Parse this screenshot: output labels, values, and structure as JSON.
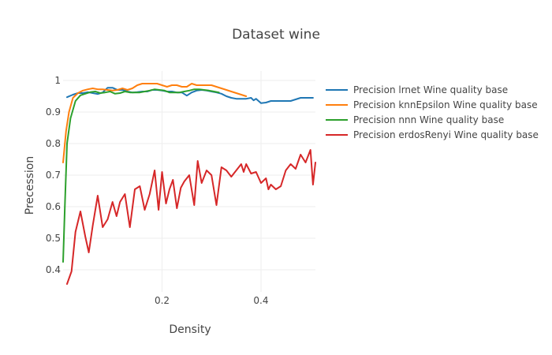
{
  "chart_data": {
    "type": "line",
    "title": "Dataset wine",
    "xlabel": "Density",
    "ylabel": "Precession",
    "xlim": [
      0.0,
      0.51
    ],
    "ylim": [
      0.33,
      1.03
    ],
    "x_ticks": [
      {
        "value": 0.2,
        "label": "0.2"
      },
      {
        "value": 0.4,
        "label": "0.4"
      }
    ],
    "y_ticks": [
      {
        "value": 0.4,
        "label": "0.4"
      },
      {
        "value": 0.5,
        "label": "0.5"
      },
      {
        "value": 0.6,
        "label": "0.6"
      },
      {
        "value": 0.7,
        "label": "0.7"
      },
      {
        "value": 0.8,
        "label": "0.8"
      },
      {
        "value": 0.9,
        "label": "0.9"
      },
      {
        "value": 1.0,
        "label": "1"
      }
    ],
    "grid": true,
    "legend_position": "right",
    "series": [
      {
        "name": "Precision lrnet Wine quality base",
        "color": "#1f77b4",
        "x": [
          0.008,
          0.02,
          0.03,
          0.04,
          0.05,
          0.06,
          0.07,
          0.08,
          0.09,
          0.1,
          0.11,
          0.12,
          0.13,
          0.14,
          0.15,
          0.16,
          0.17,
          0.18,
          0.19,
          0.2,
          0.21,
          0.22,
          0.23,
          0.24,
          0.25,
          0.26,
          0.27,
          0.28,
          0.29,
          0.3,
          0.31,
          0.32,
          0.33,
          0.34,
          0.35,
          0.36,
          0.37,
          0.38,
          0.385,
          0.39,
          0.4,
          0.41,
          0.42,
          0.43,
          0.44,
          0.45,
          0.46,
          0.47,
          0.48,
          0.49,
          0.505
        ],
        "y": [
          0.947,
          0.955,
          0.96,
          0.96,
          0.963,
          0.96,
          0.957,
          0.962,
          0.977,
          0.977,
          0.97,
          0.97,
          0.965,
          0.962,
          0.963,
          0.965,
          0.965,
          0.97,
          0.97,
          0.968,
          0.965,
          0.965,
          0.962,
          0.962,
          0.952,
          0.962,
          0.968,
          0.97,
          0.968,
          0.965,
          0.962,
          0.958,
          0.95,
          0.945,
          0.942,
          0.942,
          0.942,
          0.945,
          0.937,
          0.942,
          0.928,
          0.93,
          0.935,
          0.935,
          0.935,
          0.935,
          0.935,
          0.94,
          0.945,
          0.945,
          0.945
        ]
      },
      {
        "name": "Precision knnEpsilon Wine quality base",
        "color": "#ff7f0e",
        "x": [
          0.0,
          0.006,
          0.012,
          0.02,
          0.03,
          0.04,
          0.05,
          0.06,
          0.07,
          0.08,
          0.09,
          0.1,
          0.11,
          0.12,
          0.13,
          0.14,
          0.15,
          0.16,
          0.17,
          0.18,
          0.19,
          0.2,
          0.21,
          0.22,
          0.23,
          0.24,
          0.25,
          0.26,
          0.27,
          0.28,
          0.29,
          0.3,
          0.31,
          0.32,
          0.33,
          0.34,
          0.35,
          0.36,
          0.37
        ],
        "y": [
          0.74,
          0.84,
          0.9,
          0.945,
          0.96,
          0.968,
          0.972,
          0.975,
          0.972,
          0.972,
          0.97,
          0.968,
          0.97,
          0.975,
          0.97,
          0.975,
          0.985,
          0.99,
          0.99,
          0.99,
          0.99,
          0.985,
          0.98,
          0.985,
          0.985,
          0.98,
          0.98,
          0.99,
          0.985,
          0.985,
          0.985,
          0.985,
          0.98,
          0.975,
          0.97,
          0.965,
          0.96,
          0.955,
          0.95
        ]
      },
      {
        "name": "Precision nnn Wine quality base",
        "color": "#2ca02c",
        "x": [
          0.0,
          0.004,
          0.008,
          0.015,
          0.025,
          0.035,
          0.045,
          0.055,
          0.065,
          0.075,
          0.085,
          0.095,
          0.105,
          0.115,
          0.125,
          0.135,
          0.145,
          0.155,
          0.165,
          0.175,
          0.185,
          0.195,
          0.205,
          0.215,
          0.225,
          0.235,
          0.245,
          0.255,
          0.265,
          0.275,
          0.285,
          0.295,
          0.305,
          0.315
        ],
        "y": [
          0.425,
          0.62,
          0.8,
          0.88,
          0.935,
          0.953,
          0.958,
          0.963,
          0.965,
          0.96,
          0.962,
          0.965,
          0.958,
          0.96,
          0.965,
          0.962,
          0.962,
          0.962,
          0.965,
          0.968,
          0.972,
          0.97,
          0.968,
          0.962,
          0.962,
          0.962,
          0.965,
          0.968,
          0.972,
          0.972,
          0.97,
          0.968,
          0.965,
          0.962
        ]
      },
      {
        "name": "Precision erdosRenyi Wine quality base",
        "color": "#d62728",
        "x": [
          0.008,
          0.017,
          0.025,
          0.035,
          0.045,
          0.052,
          0.06,
          0.07,
          0.08,
          0.09,
          0.1,
          0.108,
          0.115,
          0.125,
          0.135,
          0.145,
          0.155,
          0.165,
          0.175,
          0.185,
          0.193,
          0.2,
          0.208,
          0.215,
          0.222,
          0.23,
          0.238,
          0.245,
          0.255,
          0.265,
          0.272,
          0.28,
          0.29,
          0.3,
          0.31,
          0.32,
          0.33,
          0.34,
          0.35,
          0.36,
          0.365,
          0.37,
          0.38,
          0.39,
          0.4,
          0.41,
          0.415,
          0.42,
          0.43,
          0.44,
          0.45,
          0.46,
          0.47,
          0.48,
          0.49,
          0.5,
          0.505,
          0.51
        ],
        "y": [
          0.355,
          0.395,
          0.52,
          0.585,
          0.505,
          0.455,
          0.54,
          0.635,
          0.535,
          0.56,
          0.615,
          0.57,
          0.615,
          0.64,
          0.535,
          0.655,
          0.665,
          0.59,
          0.64,
          0.715,
          0.59,
          0.71,
          0.61,
          0.655,
          0.685,
          0.595,
          0.66,
          0.68,
          0.7,
          0.605,
          0.745,
          0.675,
          0.715,
          0.7,
          0.605,
          0.725,
          0.715,
          0.695,
          0.715,
          0.735,
          0.71,
          0.735,
          0.705,
          0.71,
          0.675,
          0.69,
          0.655,
          0.67,
          0.655,
          0.665,
          0.715,
          0.735,
          0.72,
          0.765,
          0.74,
          0.78,
          0.67,
          0.74
        ]
      }
    ]
  }
}
